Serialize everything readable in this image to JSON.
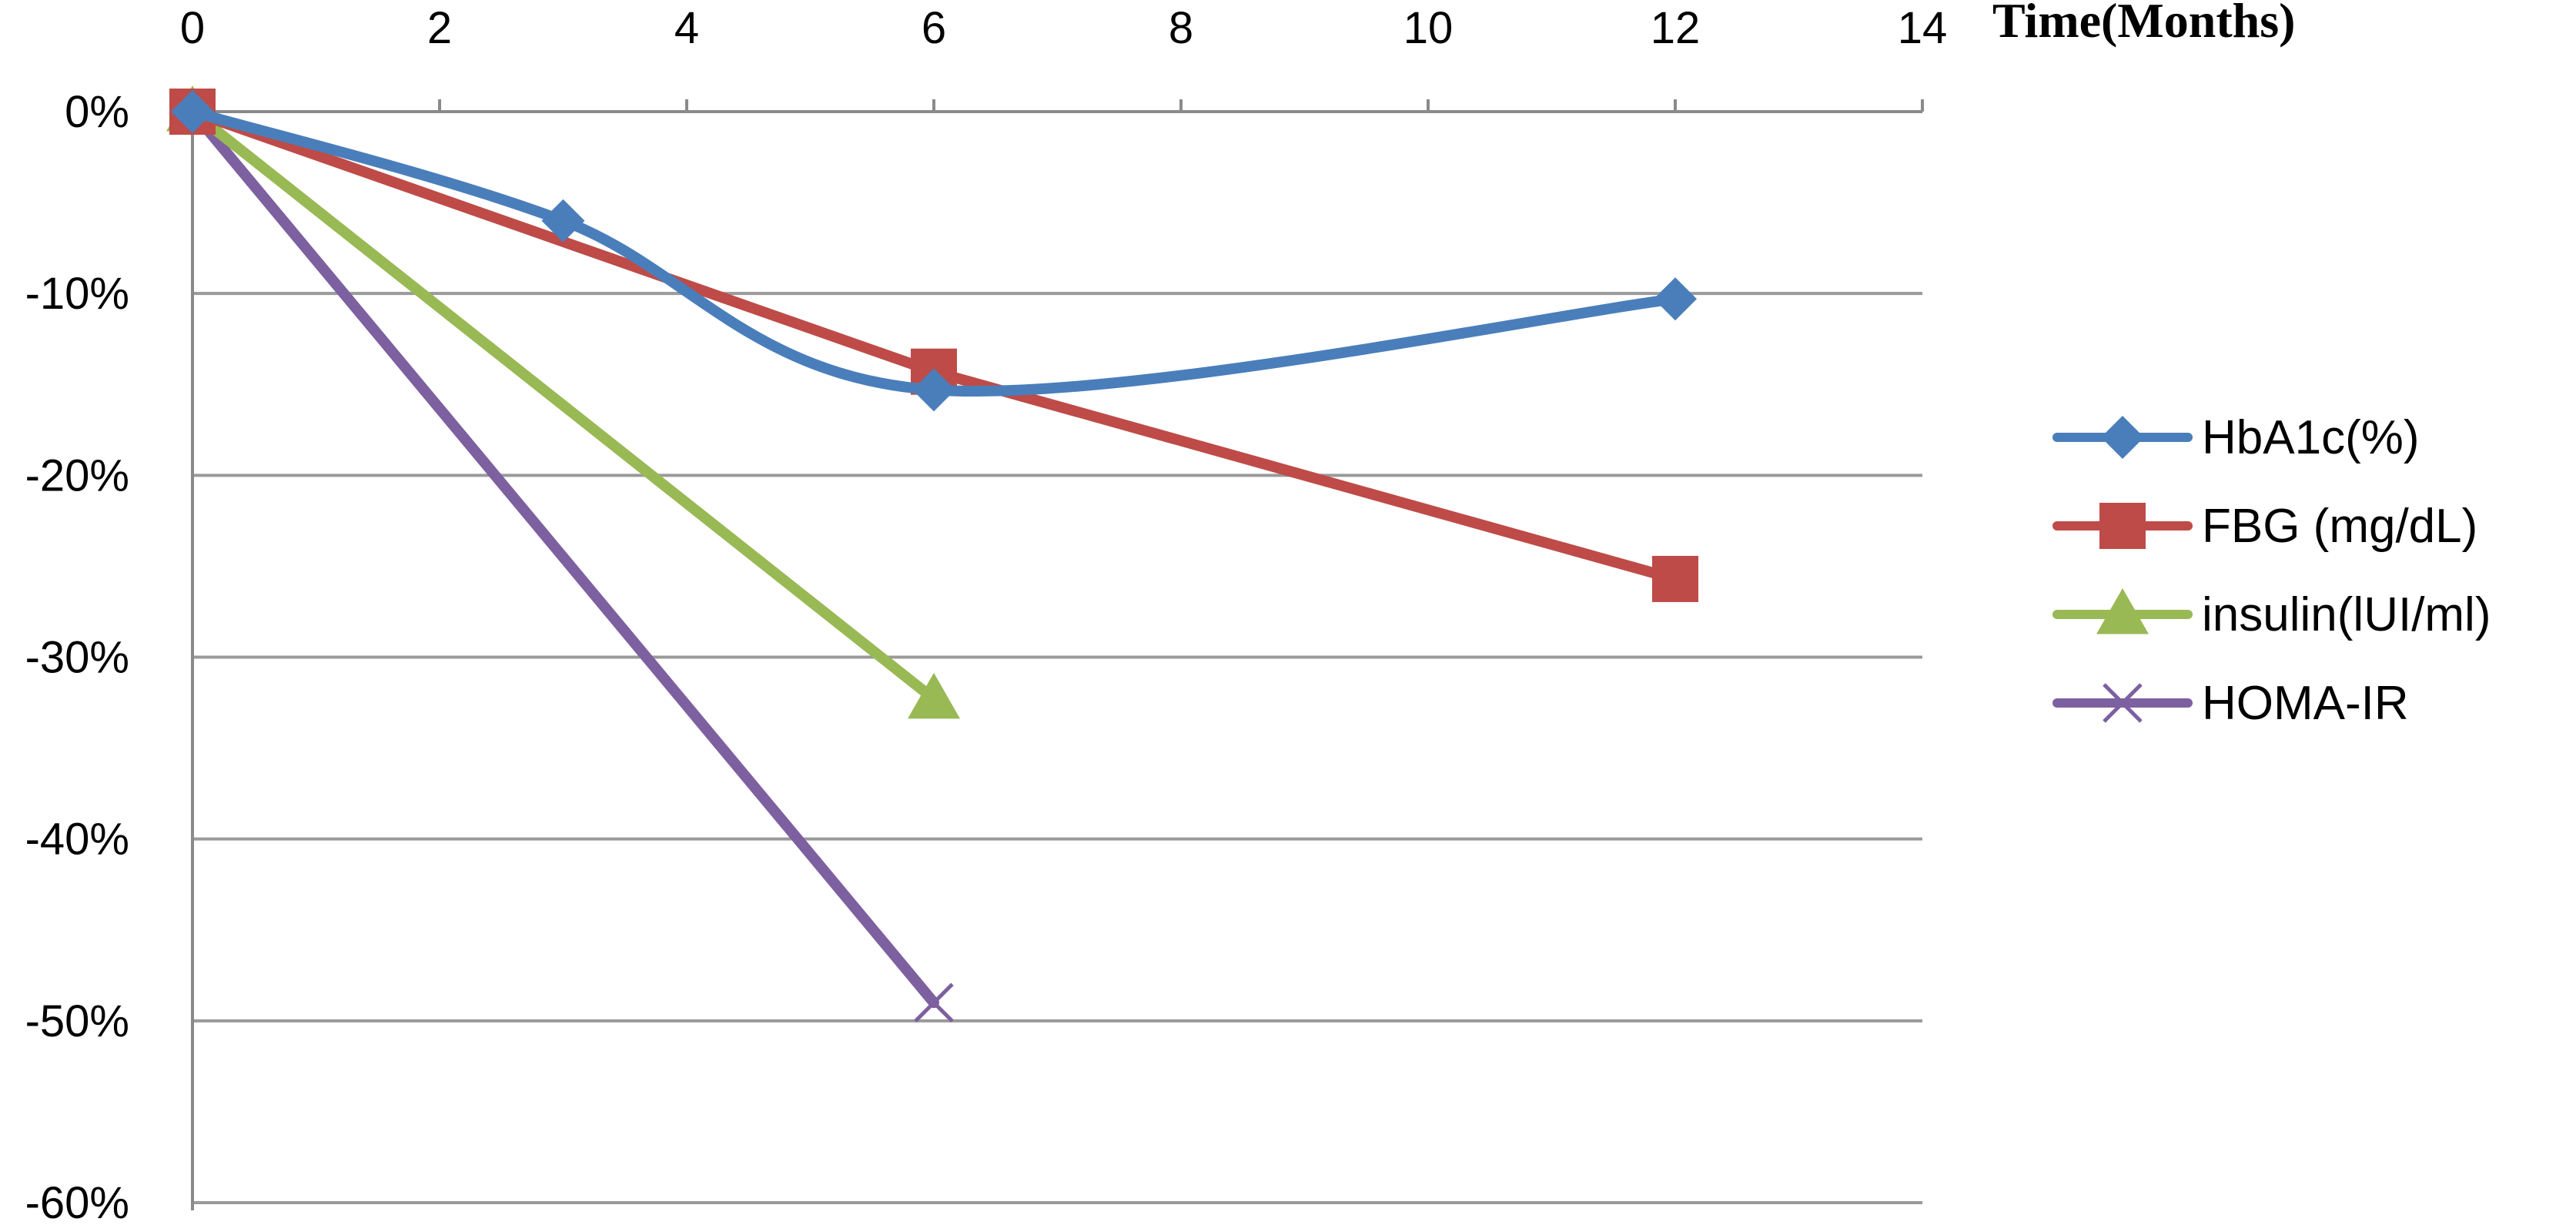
{
  "chart_data": {
    "type": "line",
    "title": "",
    "xlabel": "Time(Months)",
    "ylabel": "",
    "xlim": [
      0,
      14
    ],
    "ylim": [
      -60,
      0
    ],
    "x_ticks": [
      "0",
      "2",
      "4",
      "6",
      "8",
      "10",
      "12",
      "14"
    ],
    "y_ticks": [
      "0%",
      "-10%",
      "-20%",
      "-30%",
      "-40%",
      "-50%",
      "-60%"
    ],
    "x_axis_position": "top",
    "grid": "horizontal",
    "legend_position": "right",
    "series": [
      {
        "name": "HbA1c(%)",
        "color": "#4a7ebb",
        "marker": "diamond",
        "smooth": true,
        "points": [
          [
            0,
            0
          ],
          [
            3,
            -6
          ],
          [
            6,
            -15.3
          ],
          [
            12,
            -10.3
          ]
        ]
      },
      {
        "name": "FBG (mg/dL)",
        "color": "#be4b48",
        "marker": "square",
        "smooth": false,
        "points": [
          [
            0,
            0
          ],
          [
            6,
            -14.3
          ],
          [
            12,
            -25.7
          ]
        ]
      },
      {
        "name": "insulin(lUI/ml)",
        "color": "#98b954",
        "marker": "triangle",
        "smooth": false,
        "points": [
          [
            0,
            0
          ],
          [
            6,
            -32.3
          ]
        ]
      },
      {
        "name": "HOMA-IR",
        "color": "#7d60a0",
        "marker": "x",
        "smooth": false,
        "points": [
          [
            0,
            0
          ],
          [
            6,
            -49
          ]
        ]
      }
    ]
  }
}
